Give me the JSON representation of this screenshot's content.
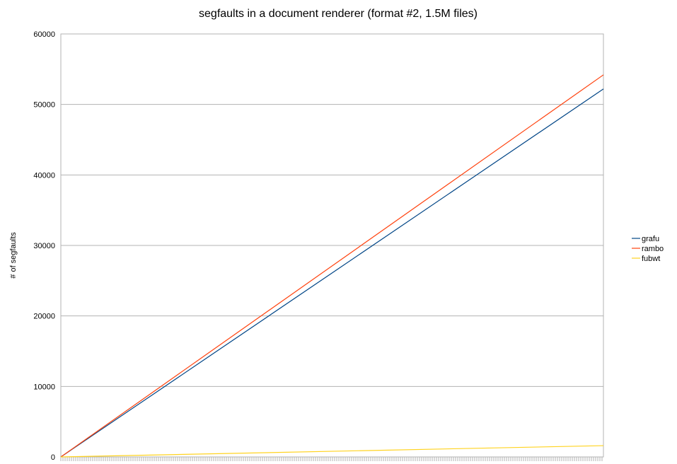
{
  "chart_data": {
    "type": "line",
    "title": "segfaults in a document renderer (format #2, 1.5M files)",
    "xlabel": "",
    "ylabel": "# of segfaults",
    "ylim": [
      0,
      60000
    ],
    "yticks": [
      0,
      10000,
      20000,
      30000,
      40000,
      50000,
      60000
    ],
    "grid": true,
    "legend_position": "right",
    "series": [
      {
        "name": "grafu",
        "color": "#004586",
        "start": 0,
        "end": 52200
      },
      {
        "name": "rambo",
        "color": "#ff420e",
        "start": 0,
        "end": 54200
      },
      {
        "name": "fubwt",
        "color": "#ffd320",
        "start": 0,
        "end": 1600
      }
    ]
  }
}
